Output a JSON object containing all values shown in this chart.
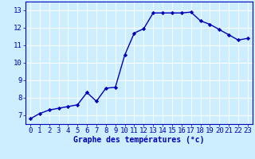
{
  "x": [
    0,
    1,
    2,
    3,
    4,
    5,
    6,
    7,
    8,
    9,
    10,
    11,
    12,
    13,
    14,
    15,
    16,
    17,
    18,
    19,
    20,
    21,
    22,
    23
  ],
  "y": [
    6.8,
    7.1,
    7.3,
    7.4,
    7.5,
    7.6,
    8.3,
    7.8,
    8.55,
    8.6,
    10.45,
    11.7,
    11.95,
    12.85,
    12.85,
    12.85,
    12.85,
    12.9,
    12.4,
    12.2,
    11.9,
    11.6,
    11.3,
    11.4
  ],
  "xlabel": "Graphe des températures (°c)",
  "ylim": [
    6.5,
    13.5
  ],
  "xlim": [
    -0.5,
    23.5
  ],
  "yticks": [
    7,
    8,
    9,
    10,
    11,
    12,
    13
  ],
  "xticks": [
    0,
    1,
    2,
    3,
    4,
    5,
    6,
    7,
    8,
    9,
    10,
    11,
    12,
    13,
    14,
    15,
    16,
    17,
    18,
    19,
    20,
    21,
    22,
    23
  ],
  "line_color": "#0000bb",
  "marker": "D",
  "marker_size": 2.2,
  "bg_color": "#cceeff",
  "grid_color": "#ffffff",
  "axis_color": "#0000bb",
  "label_color": "#0000bb",
  "xlabel_fontsize": 7,
  "tick_fontsize": 6.5,
  "linewidth": 1.0
}
